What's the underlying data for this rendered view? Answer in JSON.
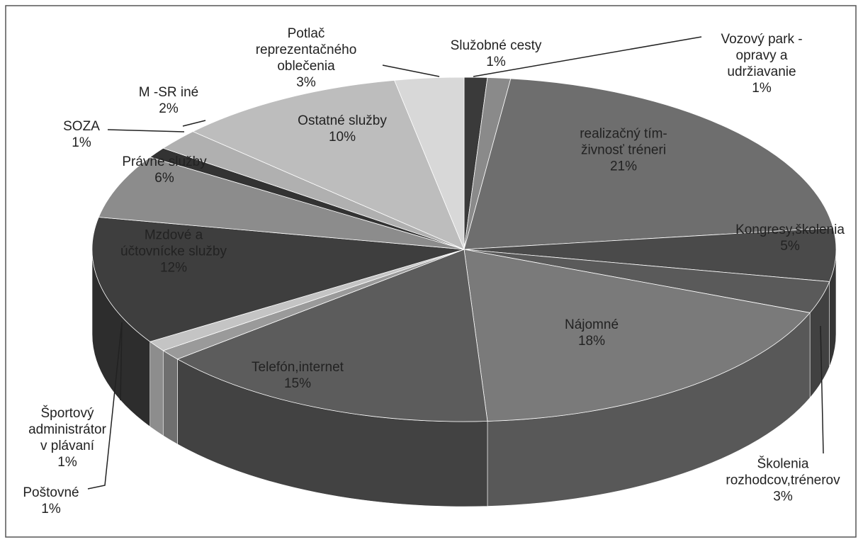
{
  "chart_data": {
    "type": "pie",
    "categories": [
      "Služobné cesty",
      "Vozový park -\nopravy a\nudržiavanie",
      "realizačný tím-\nživnosť tréneri",
      "Kongresy,školenia",
      "Školenia\nrozhodcov,trénerov",
      "Nájomné",
      "Telefón,internet",
      "Poštovné",
      "Športový\nadministrátor\nv plávaní",
      "Mzdové a\núčtovnícke služby",
      "Právne služby",
      "SOZA",
      "M -SR iné",
      "Ostatné služby",
      "Potlač\nreprezentačného\noblečenia"
    ],
    "values": [
      1,
      1,
      21,
      5,
      3,
      18,
      15,
      1,
      1,
      12,
      6,
      1,
      2,
      10,
      3
    ],
    "value_labels": [
      "1%",
      "1%",
      "21%",
      "5%",
      "3%",
      "18%",
      "15%",
      "1%",
      "1%",
      "12%",
      "6%",
      "1%",
      "2%",
      "10%",
      "3%"
    ],
    "colors": [
      "#3a3a3a",
      "#8a8a8a",
      "#6e6e6e",
      "#4a4a4a",
      "#5a5a5a",
      "#7a7a7a",
      "#5c5c5c",
      "#9a9a9a",
      "#c4c4c4",
      "#3e3e3e",
      "#8c8c8c",
      "#333333",
      "#b0b0b0",
      "#bdbdbd",
      "#d8d8d8"
    ]
  }
}
